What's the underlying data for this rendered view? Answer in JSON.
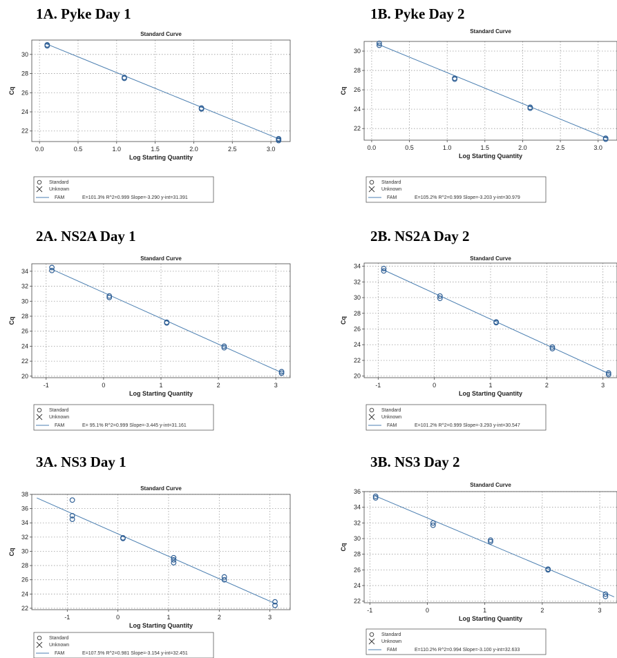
{
  "colors": {
    "series": "#4a7eb0",
    "marker": "#2f5f95",
    "grid": "#9a9a9a",
    "frame": "#444444"
  },
  "chart_data": [
    {
      "panel_title": "1A. Pyke Day 1",
      "title": "Standard Curve",
      "xlabel": "Log Starting Quantity",
      "ylabel": "Cq",
      "type": "scatter",
      "grid": true,
      "legend_position": "bottom-left",
      "xlim": [
        -0.1,
        3.25
      ],
      "ylim": [
        20.9,
        31.5
      ],
      "xticks": [
        0.0,
        0.5,
        1.0,
        1.5,
        2.0,
        2.5,
        3.0
      ],
      "xtick_labels": [
        "0.0",
        "0.5",
        "1.0",
        "1.5",
        "2.0",
        "2.5",
        "3.0"
      ],
      "yticks": [
        22,
        24,
        26,
        28,
        30
      ],
      "points": [
        [
          0.1,
          31.0
        ],
        [
          0.1,
          30.9
        ],
        [
          1.1,
          27.6
        ],
        [
          1.1,
          27.5
        ],
        [
          2.1,
          24.4
        ],
        [
          2.1,
          24.3
        ],
        [
          3.1,
          21.2
        ],
        [
          3.1,
          21.0
        ],
        [
          3.1,
          21.1
        ]
      ],
      "fit": {
        "slope": -3.29,
        "intercept": 31.391
      },
      "legend": {
        "standard": "Standard",
        "unknown": "Unknown",
        "series": "FAM",
        "stats": "E=101.3% R^2=0.999 Slope=-3.290 y-int=31.391"
      }
    },
    {
      "panel_title": "1B. Pyke Day 2",
      "title": "Standard Curve",
      "xlabel": "Log Starting Quantity",
      "ylabel": "Cq",
      "type": "scatter",
      "grid": true,
      "legend_position": "bottom-left",
      "xlim": [
        -0.1,
        3.25
      ],
      "ylim": [
        20.8,
        31.0
      ],
      "xticks": [
        0.0,
        0.5,
        1.0,
        1.5,
        2.0,
        2.5,
        3.0
      ],
      "xtick_labels": [
        "0.0",
        "0.5",
        "1.0",
        "1.5",
        "2.0",
        "2.5",
        "3.0"
      ],
      "yticks": [
        22,
        24,
        26,
        28,
        30
      ],
      "points": [
        [
          0.1,
          30.8
        ],
        [
          0.1,
          30.6
        ],
        [
          1.1,
          27.2
        ],
        [
          1.1,
          27.1
        ],
        [
          2.1,
          24.2
        ],
        [
          2.1,
          24.1
        ],
        [
          3.1,
          21.0
        ],
        [
          3.1,
          20.9
        ]
      ],
      "fit": {
        "slope": -3.203,
        "intercept": 30.979
      },
      "legend": {
        "standard": "Standard",
        "unknown": "Unknown",
        "series": "FAM",
        "stats": "E=105.2% R^2=0.999 Slope=-3.203 y-int=30.979"
      }
    },
    {
      "panel_title": "2A. NS2A Day 1",
      "title": "Standard Curve",
      "xlabel": "Log Starting Quantity",
      "ylabel": "Cq",
      "type": "scatter",
      "grid": true,
      "legend_position": "bottom-left",
      "xlim": [
        -1.25,
        3.25
      ],
      "ylim": [
        19.8,
        35.0
      ],
      "xticks": [
        -1,
        0,
        1,
        2,
        3
      ],
      "xtick_labels": [
        "-1",
        "0",
        "1",
        "2",
        "3"
      ],
      "yticks": [
        20,
        22,
        24,
        26,
        28,
        30,
        32,
        34
      ],
      "points": [
        [
          -0.9,
          34.5
        ],
        [
          -0.9,
          34.1
        ],
        [
          0.1,
          30.7
        ],
        [
          0.1,
          30.5
        ],
        [
          1.1,
          27.2
        ],
        [
          1.1,
          27.1
        ],
        [
          2.1,
          24.0
        ],
        [
          2.1,
          23.8
        ],
        [
          3.1,
          20.6
        ],
        [
          3.1,
          20.4
        ]
      ],
      "fit": {
        "slope": -3.445,
        "intercept": 31.161
      },
      "legend": {
        "standard": "Standard",
        "unknown": "Unknown",
        "series": "FAM",
        "stats": "E= 95.1% R^2=0.999 Slope=-3.445 y-int=31.161"
      }
    },
    {
      "panel_title": "2B. NS2A Day 2",
      "title": "Standard Curve",
      "xlabel": "Log Starting Quantity",
      "ylabel": "Cq",
      "type": "scatter",
      "grid": true,
      "legend_position": "bottom-left",
      "xlim": [
        -1.25,
        3.25
      ],
      "ylim": [
        19.8,
        34.4
      ],
      "xticks": [
        -1,
        0,
        1,
        2,
        3
      ],
      "xtick_labels": [
        "-1",
        "0",
        "1",
        "2",
        "3"
      ],
      "yticks": [
        20,
        22,
        24,
        26,
        28,
        30,
        32,
        34
      ],
      "points": [
        [
          -0.9,
          33.7
        ],
        [
          -0.9,
          33.4
        ],
        [
          0.1,
          30.2
        ],
        [
          0.1,
          29.9
        ],
        [
          1.1,
          26.9
        ],
        [
          1.1,
          26.8
        ],
        [
          2.1,
          23.7
        ],
        [
          2.1,
          23.5
        ],
        [
          3.1,
          20.4
        ],
        [
          3.1,
          20.2
        ]
      ],
      "fit": {
        "slope": -3.293,
        "intercept": 30.547
      },
      "legend": {
        "standard": "Standard",
        "unknown": "Unknown",
        "series": "FAM",
        "stats": "E=101.2% R^2=0.999 Slope=-3.293 y-int=30.547"
      }
    },
    {
      "panel_title": "3A. NS3 Day 1",
      "title": "Standard Curve",
      "xlabel": "Log Starting Quantity",
      "ylabel": "Cq",
      "type": "scatter",
      "grid": true,
      "legend_position": "bottom-left",
      "xlim": [
        -1.7,
        3.4
      ],
      "ylim": [
        21.8,
        38.0
      ],
      "xticks": [
        -1,
        0,
        1,
        2,
        3
      ],
      "xtick_labels": [
        "-1",
        "0",
        "1",
        "2",
        "3"
      ],
      "yticks": [
        22,
        24,
        26,
        28,
        30,
        32,
        34,
        36,
        38
      ],
      "points": [
        [
          -0.9,
          37.2
        ],
        [
          -0.9,
          35.0
        ],
        [
          -0.9,
          34.5
        ],
        [
          0.1,
          31.9
        ],
        [
          0.1,
          31.8
        ],
        [
          1.1,
          29.1
        ],
        [
          1.1,
          28.8
        ],
        [
          1.1,
          28.4
        ],
        [
          2.1,
          26.4
        ],
        [
          2.1,
          26.0
        ],
        [
          3.1,
          22.9
        ],
        [
          3.1,
          22.4
        ]
      ],
      "fit": {
        "slope": -3.154,
        "intercept": 32.451
      },
      "legend": {
        "standard": "Standard",
        "unknown": "Unknown",
        "series": "FAM",
        "stats": "E=107.5% R^2=0.981 Slope=-3.154 y-int=32.451"
      }
    },
    {
      "panel_title": "3B. NS3 Day 2",
      "title": "Standard Curve",
      "xlabel": "Log Starting Quantity",
      "ylabel": "Cq",
      "type": "scatter",
      "grid": true,
      "legend_position": "bottom-left",
      "xlim": [
        -1.1,
        3.3
      ],
      "ylim": [
        21.8,
        36.0
      ],
      "xticks": [
        -1,
        0,
        1,
        2,
        3
      ],
      "xtick_labels": [
        "-1",
        "0",
        "1",
        "2",
        "3"
      ],
      "yticks": [
        22,
        24,
        26,
        28,
        30,
        32,
        34,
        36
      ],
      "points": [
        [
          -0.9,
          35.4
        ],
        [
          -0.9,
          35.2
        ],
        [
          0.1,
          32.0
        ],
        [
          0.1,
          31.7
        ],
        [
          1.1,
          29.8
        ],
        [
          1.1,
          29.6
        ],
        [
          2.1,
          26.1
        ],
        [
          2.1,
          26.0
        ],
        [
          3.1,
          22.9
        ],
        [
          3.1,
          22.6
        ]
      ],
      "fit": {
        "slope": -3.1,
        "intercept": 32.633
      },
      "legend": {
        "standard": "Standard",
        "unknown": "Unknown",
        "series": "FAM",
        "stats": "E=110.2% R^2=0.994 Slope=-3.100 y-int=32.633"
      }
    }
  ]
}
